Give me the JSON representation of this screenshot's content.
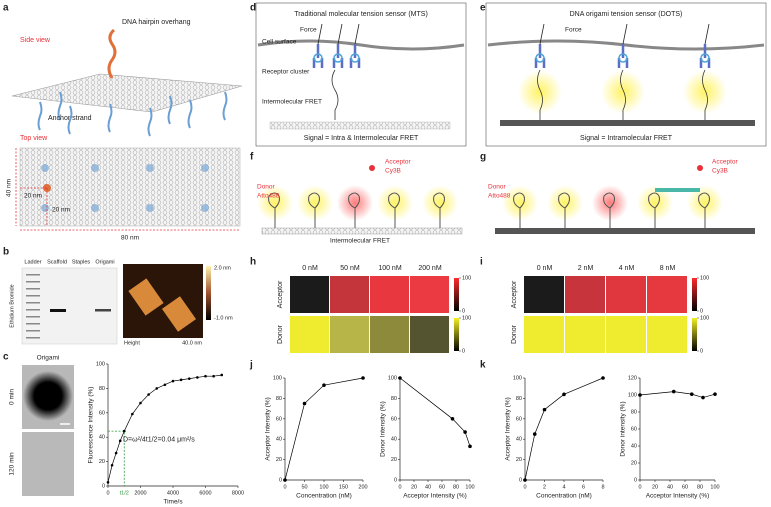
{
  "panel_letters": [
    "a",
    "b",
    "c",
    "d",
    "e",
    "f",
    "g",
    "h",
    "i",
    "j",
    "k"
  ],
  "a": {
    "side_view": "Side view",
    "hairpin": "DNA hairpin overhang",
    "anchor": "Anchor strand",
    "top_view": "Top view",
    "height": "40 nm",
    "dim1": "20 nm",
    "dim2": "20 nm",
    "width": "80 nm"
  },
  "b": {
    "lanes": [
      "Ladder",
      "Scaffold",
      "Staples",
      "Origami"
    ],
    "stain": "Ethidium Bromide",
    "scale_max": "2.0 nm",
    "scale_min": "-1.0 nm",
    "scale_label": "Height",
    "scale_bar": "40.0 nm"
  },
  "c": {
    "title": "Origami",
    "times": [
      "0 min",
      "120 min"
    ]
  },
  "d": {
    "title": "Traditional molecular tension sensor (MTS)",
    "force": "Force",
    "cell_surface": "Cell surface",
    "receptor": "Receptor cluster",
    "fret": "Intermolecular FRET",
    "signal": "Signal = Intra & Intermolecular FRET"
  },
  "e": {
    "title": "DNA origami tension sensor (DOTS)",
    "force": "Force",
    "signal": "Signal = Intramolecular FRET"
  },
  "f": {
    "donor": "Donor",
    "donor_dye": "Atto488",
    "acceptor": "Acceptor",
    "acceptor_dye": "Cy3B",
    "fret": "Intermolecular FRET"
  },
  "g": {
    "donor": "Donor",
    "donor_dye": "Atto488",
    "acceptor": "Acceptor",
    "acceptor_dye": "Cy3B"
  },
  "h": {
    "columns": [
      "0 nM",
      "50 nM",
      "100 nM",
      "200 nM"
    ],
    "colorbar_ticks": [
      0,
      100
    ],
    "rows": [
      {
        "name": "Acceptor",
        "colors": [
          "#1b1b1b",
          "#c3343b",
          "#e8373f",
          "#ec3a42"
        ],
        "colormap": [
          "#000000",
          "#ff2a2a"
        ]
      },
      {
        "name": "Donor",
        "colors": [
          "#efeb2e",
          "#b8b548",
          "#8d8b3b",
          "#555430"
        ],
        "colormap": [
          "#000000",
          "#f2f020"
        ]
      }
    ]
  },
  "i": {
    "columns": [
      "0 nM",
      "2 nM",
      "4 nM",
      "8 nM"
    ],
    "colorbar_ticks": [
      0,
      100
    ],
    "rows": [
      {
        "name": "Acceptor",
        "colors": [
          "#1b1b1b",
          "#c8343c",
          "#e0363e",
          "#e6383f"
        ],
        "colormap": [
          "#000000",
          "#ff2a2a"
        ]
      },
      {
        "name": "Donor",
        "colors": [
          "#efeb2e",
          "#efeb2e",
          "#efeb2e",
          "#efeb2e"
        ],
        "colormap": [
          "#000000",
          "#f2f020"
        ]
      }
    ]
  },
  "chart_data": [
    {
      "type": "line",
      "x": [
        0,
        250,
        500,
        750,
        1000,
        1500,
        2000,
        2500,
        3000,
        3500,
        4000,
        4500,
        5000,
        5500,
        6000,
        6500,
        7000
      ],
      "values": [
        3,
        17,
        27,
        37,
        45,
        59,
        68,
        75,
        80,
        83,
        86,
        87,
        88,
        89,
        90,
        90,
        91
      ],
      "xlim": [
        0,
        8000
      ],
      "xticks": [
        0,
        2000,
        4000,
        6000,
        8000
      ],
      "ylim": [
        0,
        100
      ],
      "yticks": [
        0,
        20,
        40,
        60,
        80,
        100
      ],
      "x_label": "Time/s",
      "y_label": "Fluorescence Intensity (%)",
      "annotation": "D=ω²/4t1/2=0.04 μm²/s",
      "t_half_label": "t1/2",
      "t_half": 1000,
      "half_value": 45,
      "color": "#000000",
      "guide_color": "#2e9a3a"
    },
    {
      "type": "line",
      "x": [
        0,
        50,
        100,
        200
      ],
      "values": [
        0,
        75,
        93,
        100
      ],
      "xlim": [
        0,
        200
      ],
      "xticks": [
        0,
        50,
        100,
        150,
        200
      ],
      "ylim": [
        0,
        100
      ],
      "yticks": [
        0,
        20,
        40,
        60,
        80,
        100
      ],
      "x_label": "Concentration (nM)",
      "y_label": "Acceptor Intensity (%)",
      "color": "#000000"
    },
    {
      "type": "line",
      "x": [
        0,
        75,
        93,
        100
      ],
      "values": [
        100,
        60,
        47,
        33
      ],
      "xlim": [
        0,
        100
      ],
      "xticks": [
        0,
        20,
        40,
        60,
        80,
        100
      ],
      "ylim": [
        0,
        100
      ],
      "yticks": [
        0,
        20,
        40,
        60,
        80,
        100
      ],
      "x_label": "Acceptor Intensity (%)",
      "y_label": "Donor Intensity (%)",
      "color": "#000000"
    },
    {
      "type": "line",
      "x": [
        0,
        1,
        2,
        4,
        8
      ],
      "values": [
        0,
        45,
        69,
        84,
        100
      ],
      "xlim": [
        0,
        8
      ],
      "xticks": [
        0,
        2,
        4,
        6,
        8
      ],
      "ylim": [
        0,
        100
      ],
      "yticks": [
        0,
        20,
        40,
        60,
        80,
        100
      ],
      "x_label": "Concentration (nM)",
      "y_label": "Acceptor Intensity (%)",
      "color": "#000000"
    },
    {
      "type": "line",
      "x": [
        0,
        45,
        69,
        84,
        100
      ],
      "values": [
        100,
        104,
        101,
        97,
        101
      ],
      "xlim": [
        0,
        100
      ],
      "xticks": [
        0,
        20,
        40,
        60,
        80,
        100
      ],
      "ylim": [
        0,
        120
      ],
      "yticks": [
        0,
        20,
        40,
        60,
        80,
        100,
        120
      ],
      "x_label": "Acceptor Intensity (%)",
      "y_label": "Donor intensity (%)",
      "color": "#000000"
    }
  ]
}
